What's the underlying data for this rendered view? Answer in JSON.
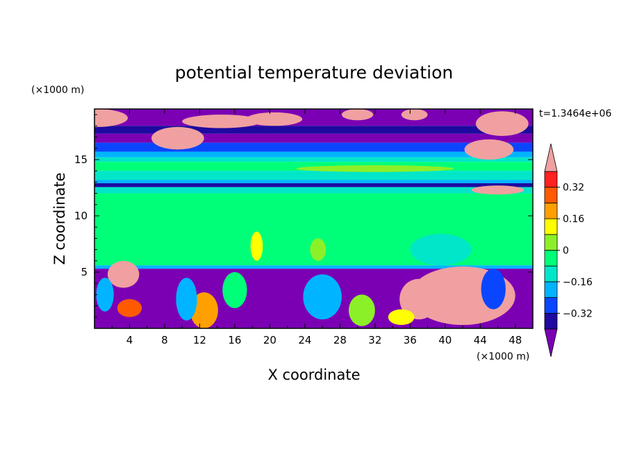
{
  "chart_data": {
    "type": "heatmap",
    "title": "potential temperature deviation",
    "xlabel": "X coordinate",
    "ylabel": "Z coordinate",
    "x_unit": "(×1000 m)",
    "y_unit": "(×1000 m)",
    "time_label": "t=1.3464e+06",
    "xlim": [
      0,
      50
    ],
    "ylim": [
      0,
      19.5
    ],
    "x_ticks": [
      "4",
      "8",
      "12",
      "16",
      "20",
      "24",
      "28",
      "32",
      "36",
      "40",
      "44",
      "48"
    ],
    "y_ticks": [
      "5",
      "10",
      "15"
    ],
    "colorbar": {
      "labels": [
        "0.32",
        "0.16",
        "0",
        "−0.16",
        "−0.32"
      ],
      "levels": [
        -0.4,
        -0.32,
        -0.24,
        -0.16,
        -0.08,
        0,
        0.08,
        0.16,
        0.24,
        0.32,
        0.4
      ],
      "colors": [
        "#7b00b4",
        "#1e0aa0",
        "#0a46ff",
        "#00b4ff",
        "#00e6c8",
        "#00ff78",
        "#8cf028",
        "#ffff00",
        "#ffa000",
        "#ff5a00",
        "#ff2020",
        "#f0a0a0"
      ],
      "extend": "both"
    },
    "bands": [
      {
        "z": [
          18.0,
          19.5
        ],
        "class": 0
      },
      {
        "z": [
          17.3,
          18.0
        ],
        "class": 1
      },
      {
        "z": [
          16.5,
          17.3
        ],
        "class": 0
      },
      {
        "z": [
          15.7,
          16.5
        ],
        "class": 2
      },
      {
        "z": [
          15.2,
          15.7
        ],
        "class": 3
      },
      {
        "z": [
          14.8,
          15.2
        ],
        "class": 4
      },
      {
        "z": [
          14.0,
          14.8
        ],
        "class": 5
      },
      {
        "z": [
          13.2,
          14.0
        ],
        "class": 4
      },
      {
        "z": [
          12.9,
          13.2
        ],
        "class": 3
      },
      {
        "z": [
          12.55,
          12.9
        ],
        "class": 1
      },
      {
        "z": [
          12.0,
          12.55
        ],
        "class": 4
      },
      {
        "z": [
          5.6,
          12.0
        ],
        "class": 5
      },
      {
        "z": [
          5.3,
          5.6
        ],
        "class": 3
      },
      {
        "z": [
          0,
          5.3
        ],
        "class": 0
      }
    ],
    "patches": [
      {
        "x": 0.3,
        "z": 18.7,
        "rx": 3.5,
        "rz": 0.8,
        "class": 11
      },
      {
        "x": 9.5,
        "z": 16.9,
        "rx": 3.0,
        "rz": 1.0,
        "class": 11
      },
      {
        "x": 14.5,
        "z": 18.4,
        "rx": 4.5,
        "rz": 0.6,
        "class": 11
      },
      {
        "x": 20.5,
        "z": 18.6,
        "rx": 3.2,
        "rz": 0.6,
        "class": 11
      },
      {
        "x": 30.0,
        "z": 19.0,
        "rx": 1.8,
        "rz": 0.5,
        "class": 11
      },
      {
        "x": 36.5,
        "z": 19.0,
        "rx": 1.5,
        "rz": 0.5,
        "class": 11
      },
      {
        "x": 46.5,
        "z": 18.2,
        "rx": 3.0,
        "rz": 1.1,
        "class": 11
      },
      {
        "x": 45.0,
        "z": 15.9,
        "rx": 2.8,
        "rz": 0.9,
        "class": 11
      },
      {
        "x": 46.0,
        "z": 12.3,
        "rx": 3.0,
        "rz": 0.4,
        "class": 11
      },
      {
        "x": 32.0,
        "z": 14.2,
        "rx": 9.0,
        "rz": 0.3,
        "class": 6
      },
      {
        "x": 18.5,
        "z": 7.3,
        "rx": 0.7,
        "rz": 1.3,
        "class": 7
      },
      {
        "x": 25.5,
        "z": 7.0,
        "rx": 0.9,
        "rz": 1.0,
        "class": 6
      },
      {
        "x": 39.5,
        "z": 7.0,
        "rx": 3.5,
        "rz": 1.4,
        "class": 4
      },
      {
        "x": 42.0,
        "z": 2.9,
        "rx": 6.0,
        "rz": 2.6,
        "class": 11
      },
      {
        "x": 37.0,
        "z": 2.6,
        "rx": 2.2,
        "rz": 1.8,
        "class": 11
      },
      {
        "x": 3.3,
        "z": 4.8,
        "rx": 1.8,
        "rz": 1.2,
        "class": 11
      },
      {
        "x": 12.5,
        "z": 1.6,
        "rx": 1.6,
        "rz": 1.6,
        "class": 8
      },
      {
        "x": 4.0,
        "z": 1.8,
        "rx": 1.4,
        "rz": 0.8,
        "class": 9
      },
      {
        "x": 10.5,
        "z": 2.6,
        "rx": 1.2,
        "rz": 1.9,
        "class": 3
      },
      {
        "x": 26.0,
        "z": 2.8,
        "rx": 2.2,
        "rz": 2.0,
        "class": 3
      },
      {
        "x": 30.5,
        "z": 1.6,
        "rx": 1.5,
        "rz": 1.4,
        "class": 6
      },
      {
        "x": 35.0,
        "z": 1.0,
        "rx": 1.5,
        "rz": 0.7,
        "class": 7
      },
      {
        "x": 16.0,
        "z": 3.4,
        "rx": 1.4,
        "rz": 1.6,
        "class": 5
      },
      {
        "x": 1.2,
        "z": 3.0,
        "rx": 1.0,
        "rz": 1.5,
        "class": 3
      },
      {
        "x": 45.5,
        "z": 3.5,
        "rx": 1.4,
        "rz": 1.8,
        "class": 2
      }
    ]
  }
}
